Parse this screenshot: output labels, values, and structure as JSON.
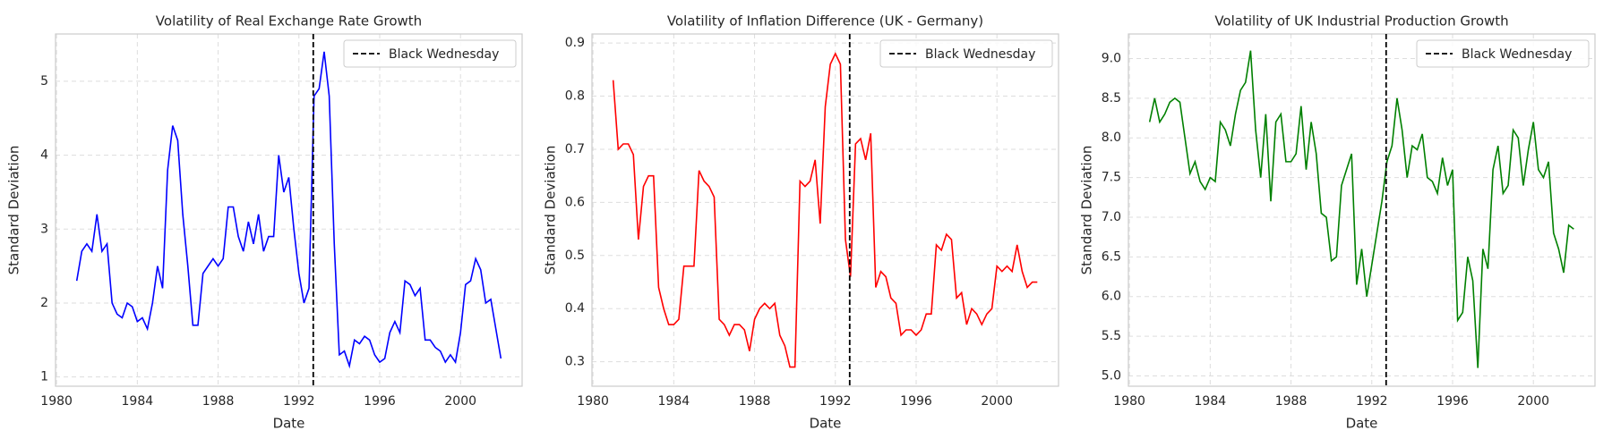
{
  "chart_data": [
    {
      "type": "line",
      "title": "Volatility of Real Exchange Rate Growth",
      "xlabel": "Date",
      "ylabel": "Standard Deviation",
      "color": "#0000ff",
      "x": [
        1981,
        1981.25,
        1981.5,
        1981.75,
        1982,
        1982.25,
        1982.5,
        1982.75,
        1983,
        1983.25,
        1983.5,
        1983.75,
        1984,
        1984.25,
        1984.5,
        1984.75,
        1985,
        1985.25,
        1985.5,
        1985.75,
        1986,
        1986.25,
        1986.5,
        1986.75,
        1987,
        1987.25,
        1987.5,
        1987.75,
        1988,
        1988.25,
        1988.5,
        1988.75,
        1989,
        1989.25,
        1989.5,
        1989.75,
        1990,
        1990.25,
        1990.5,
        1990.75,
        1991,
        1991.25,
        1991.5,
        1991.75,
        1992,
        1992.25,
        1992.5,
        1992.75,
        1993,
        1993.25,
        1993.5,
        1993.75,
        1994,
        1994.25,
        1994.5,
        1994.75,
        1995,
        1995.25,
        1995.5,
        1995.75,
        1996,
        1996.25,
        1996.5,
        1996.75,
        1997,
        1997.25,
        1997.5,
        1997.75,
        1998,
        1998.25,
        1998.5,
        1998.75,
        1999,
        1999.25,
        1999.5,
        1999.75,
        2000,
        2000.25,
        2000.5,
        2000.75,
        2001,
        2001.25,
        2001.5,
        2001.75,
        2002
      ],
      "values": [
        2.3,
        2.7,
        2.8,
        2.7,
        3.2,
        2.7,
        2.8,
        2.0,
        1.85,
        1.8,
        2.0,
        1.95,
        1.75,
        1.8,
        1.65,
        2.0,
        2.5,
        2.2,
        3.8,
        4.4,
        4.2,
        3.2,
        2.5,
        1.7,
        1.7,
        2.4,
        2.5,
        2.6,
        2.5,
        2.6,
        3.3,
        3.3,
        2.9,
        2.7,
        3.1,
        2.8,
        3.2,
        2.7,
        2.9,
        2.9,
        4.0,
        3.5,
        3.7,
        3.0,
        2.4,
        2.0,
        2.2,
        4.8,
        4.9,
        5.4,
        4.8,
        2.8,
        1.3,
        1.35,
        1.15,
        1.5,
        1.45,
        1.55,
        1.5,
        1.3,
        1.2,
        1.25,
        1.6,
        1.75,
        1.6,
        2.3,
        2.25,
        2.1,
        2.2,
        1.5,
        1.5,
        1.4,
        1.35,
        1.2,
        1.3,
        1.2,
        1.6,
        2.25,
        2.3,
        2.6,
        2.45,
        2.0,
        2.05,
        1.65,
        1.25
      ],
      "xlim": [
        1979.95,
        2003.05
      ],
      "xticks": [
        1980,
        1984,
        1988,
        1992,
        1996,
        2000
      ],
      "ylim": [
        0.875,
        5.64
      ],
      "yticks": [
        1,
        2,
        3,
        4,
        5
      ],
      "grid": true,
      "legend_loc": "upper right",
      "vline": {
        "x": 1992.71,
        "label": "Black Wednesday",
        "color": "#000000"
      }
    },
    {
      "type": "line",
      "title": "Volatility of Inflation Difference (UK - Germany)",
      "xlabel": "Date",
      "ylabel": "Standard Deviation",
      "color": "#ff0000",
      "x": [
        1981,
        1981.25,
        1981.5,
        1981.75,
        1982,
        1982.25,
        1982.5,
        1982.75,
        1983,
        1983.25,
        1983.5,
        1983.75,
        1984,
        1984.25,
        1984.5,
        1984.75,
        1985,
        1985.25,
        1985.5,
        1985.75,
        1986,
        1986.25,
        1986.5,
        1986.75,
        1987,
        1987.25,
        1987.5,
        1987.75,
        1988,
        1988.25,
        1988.5,
        1988.75,
        1989,
        1989.25,
        1989.5,
        1989.75,
        1990,
        1990.25,
        1990.5,
        1990.75,
        1991,
        1991.25,
        1991.5,
        1991.75,
        1992,
        1992.25,
        1992.5,
        1992.75,
        1993,
        1993.25,
        1993.5,
        1993.75,
        1994,
        1994.25,
        1994.5,
        1994.75,
        1995,
        1995.25,
        1995.5,
        1995.75,
        1996,
        1996.25,
        1996.5,
        1996.75,
        1997,
        1997.25,
        1997.5,
        1997.75,
        1998,
        1998.25,
        1998.5,
        1998.75,
        1999,
        1999.25,
        1999.5,
        1999.75,
        2000,
        2000.25,
        2000.5,
        2000.75,
        2001,
        2001.25,
        2001.5,
        2001.75,
        2002
      ],
      "values": [
        0.83,
        0.7,
        0.71,
        0.71,
        0.69,
        0.53,
        0.63,
        0.65,
        0.65,
        0.44,
        0.4,
        0.37,
        0.37,
        0.38,
        0.48,
        0.48,
        0.48,
        0.66,
        0.64,
        0.63,
        0.61,
        0.38,
        0.37,
        0.35,
        0.37,
        0.37,
        0.36,
        0.32,
        0.38,
        0.4,
        0.41,
        0.4,
        0.41,
        0.35,
        0.33,
        0.29,
        0.29,
        0.64,
        0.63,
        0.64,
        0.68,
        0.56,
        0.78,
        0.86,
        0.88,
        0.86,
        0.53,
        0.46,
        0.71,
        0.72,
        0.68,
        0.73,
        0.44,
        0.47,
        0.46,
        0.42,
        0.41,
        0.35,
        0.36,
        0.36,
        0.35,
        0.36,
        0.39,
        0.39,
        0.52,
        0.51,
        0.54,
        0.53,
        0.42,
        0.43,
        0.37,
        0.4,
        0.39,
        0.37,
        0.39,
        0.4,
        0.48,
        0.47,
        0.48,
        0.47,
        0.52,
        0.47,
        0.44,
        0.45,
        0.45
      ],
      "xlim": [
        1979.95,
        2003.05
      ],
      "xticks": [
        1980,
        1984,
        1988,
        1992,
        1996,
        2000
      ],
      "ylim": [
        0.254,
        0.917
      ],
      "yticks": [
        0.3,
        0.4,
        0.5,
        0.6,
        0.7,
        0.8,
        0.9
      ],
      "grid": true,
      "legend_loc": "upper right",
      "vline": {
        "x": 1992.71,
        "label": "Black Wednesday",
        "color": "#000000"
      }
    },
    {
      "type": "line",
      "title": "Volatility of UK Industrial Production Growth",
      "xlabel": "Date",
      "ylabel": "Standard Deviation",
      "color": "#008000",
      "x": [
        1981,
        1981.25,
        1981.5,
        1981.75,
        1982,
        1982.25,
        1982.5,
        1982.75,
        1983,
        1983.25,
        1983.5,
        1983.75,
        1984,
        1984.25,
        1984.5,
        1984.75,
        1985,
        1985.25,
        1985.5,
        1985.75,
        1986,
        1986.25,
        1986.5,
        1986.75,
        1987,
        1987.25,
        1987.5,
        1987.75,
        1988,
        1988.25,
        1988.5,
        1988.75,
        1989,
        1989.25,
        1989.5,
        1989.75,
        1990,
        1990.25,
        1990.5,
        1990.75,
        1991,
        1991.25,
        1991.5,
        1991.75,
        1992,
        1992.25,
        1992.5,
        1992.75,
        1993,
        1993.25,
        1993.5,
        1993.75,
        1994,
        1994.25,
        1994.5,
        1994.75,
        1995,
        1995.25,
        1995.5,
        1995.75,
        1996,
        1996.25,
        1996.5,
        1996.75,
        1997,
        1997.25,
        1997.5,
        1997.75,
        1998,
        1998.25,
        1998.5,
        1998.75,
        1999,
        1999.25,
        1999.5,
        1999.75,
        2000,
        2000.25,
        2000.5,
        2000.75,
        2001,
        2001.25,
        2001.5,
        2001.75,
        2002
      ],
      "values": [
        8.2,
        8.5,
        8.2,
        8.3,
        8.45,
        8.5,
        8.45,
        8.0,
        7.55,
        7.7,
        7.45,
        7.35,
        7.5,
        7.45,
        8.2,
        8.1,
        7.9,
        8.3,
        8.6,
        8.7,
        9.1,
        8.1,
        7.5,
        8.3,
        7.2,
        8.2,
        8.3,
        7.7,
        7.7,
        7.8,
        8.4,
        7.6,
        8.2,
        7.8,
        7.05,
        7.0,
        6.45,
        6.5,
        7.4,
        7.6,
        7.8,
        6.15,
        6.6,
        6.0,
        6.4,
        6.8,
        7.2,
        7.7,
        7.9,
        8.5,
        8.1,
        7.5,
        7.9,
        7.85,
        8.05,
        7.5,
        7.45,
        7.3,
        7.75,
        7.4,
        7.6,
        5.7,
        5.8,
        6.5,
        6.2,
        5.1,
        6.6,
        6.35,
        7.6,
        7.9,
        7.3,
        7.4,
        8.1,
        8.0,
        7.4,
        7.85,
        8.2,
        7.6,
        7.5,
        7.7,
        6.8,
        6.6,
        6.3,
        6.9,
        6.85
      ],
      "xlim": [
        1979.95,
        2003.05
      ],
      "xticks": [
        1980,
        1984,
        1988,
        1992,
        1996,
        2000
      ],
      "ylim": [
        4.87,
        9.31
      ],
      "yticks": [
        {
          "value": 5,
          "label": "5.0"
        },
        5.5,
        {
          "value": 6,
          "label": "6.0"
        },
        6.5,
        {
          "value": 7,
          "label": "7.0"
        },
        7.5,
        {
          "value": 8,
          "label": "8.0"
        },
        8.5,
        {
          "value": 9,
          "label": "9.0"
        }
      ],
      "grid": true,
      "legend_loc": "upper right",
      "vline": {
        "x": 1992.71,
        "label": "Black Wednesday",
        "color": "#000000"
      }
    }
  ]
}
